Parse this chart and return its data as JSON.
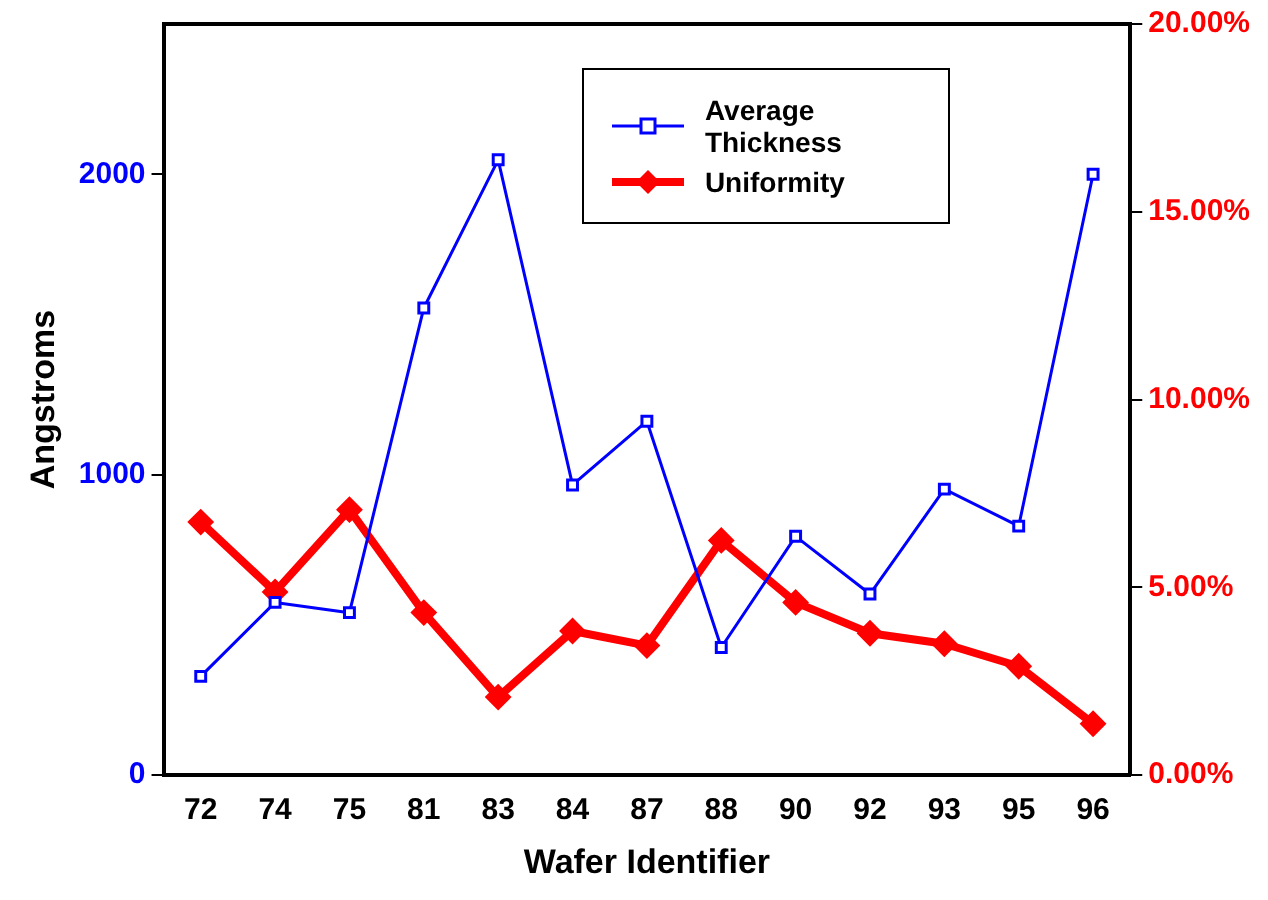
{
  "chart_data": {
    "type": "line",
    "xlabel": "Wafer Identifier",
    "ylabel": "Angstroms",
    "categories": [
      "72",
      "74",
      "75",
      "81",
      "83",
      "84",
      "87",
      "88",
      "90",
      "92",
      "93",
      "95",
      "96"
    ],
    "series": [
      {
        "name": "Average Thickness",
        "color": "#0000ff",
        "marker": "square",
        "values": [
          329,
          575,
          541,
          1555,
          2048,
          966,
          1178,
          425,
          795,
          603,
          952,
          829,
          2000
        ]
      },
      {
        "name": "Uniformity",
        "color": "#ff0000",
        "marker": "diamond",
        "axis": "y2",
        "values": [
          6.74,
          4.88,
          7.07,
          4.33,
          2.08,
          3.84,
          3.45,
          6.25,
          4.6,
          3.78,
          3.5,
          2.9,
          1.37
        ]
      }
    ],
    "ylim": [
      0,
      2500
    ],
    "yticks": [
      0,
      1000,
      2000
    ],
    "y2lim": [
      0,
      20
    ],
    "y2ticks": [
      {
        "value": 0,
        "label": "0.00%"
      },
      {
        "value": 5,
        "label": "5.00%"
      },
      {
        "value": 10,
        "label": "10.00%"
      },
      {
        "value": 15,
        "label": "15.00%"
      },
      {
        "value": 20,
        "label": "20.00%"
      }
    ],
    "grid": false,
    "legend": "top"
  }
}
